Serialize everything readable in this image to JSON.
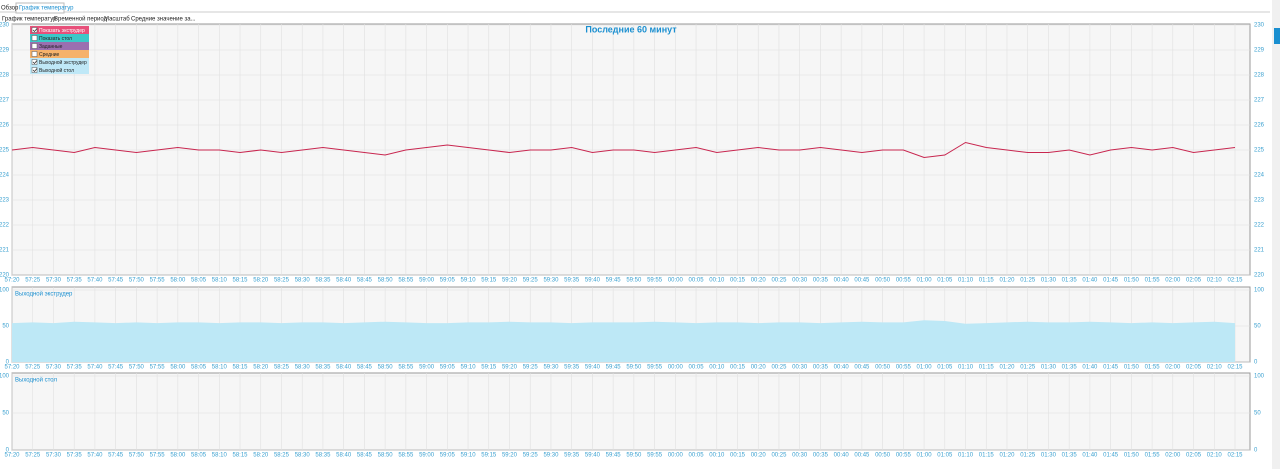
{
  "tabs": [
    "Обзор",
    "График температур"
  ],
  "menu": [
    "График температур",
    "Временной период",
    "Масштаб",
    "Средние значение за..."
  ],
  "legend": [
    {
      "label": "Показать экструдер",
      "color": "#e8507a",
      "checked": true
    },
    {
      "label": "Показать стол",
      "color": "#3cc8c8",
      "checked": false
    },
    {
      "label": "Заданные",
      "color": "#9b6fb0",
      "checked": false
    },
    {
      "label": "Средние",
      "color": "#f5b26b",
      "checked": false
    },
    {
      "label": "Выходной экструдер",
      "color": "#bfe8f7",
      "checked": true
    },
    {
      "label": "Выходной стол",
      "color": "#bfe8f7",
      "checked": true
    }
  ],
  "chart_data": [
    {
      "type": "line",
      "title": "Последние 60 минут",
      "color": "#c8264f",
      "ylim": [
        220,
        230
      ],
      "yticks": [
        220,
        221,
        222,
        223,
        224,
        225,
        226,
        227,
        228,
        229,
        230
      ],
      "grid": true,
      "categories": [
        "57:20",
        "57:25",
        "57:30",
        "57:35",
        "57:40",
        "57:45",
        "57:50",
        "57:55",
        "58:00",
        "58:05",
        "58:10",
        "58:15",
        "58:20",
        "58:25",
        "58:30",
        "58:35",
        "58:40",
        "58:45",
        "58:50",
        "58:55",
        "59:00",
        "59:05",
        "59:10",
        "59:15",
        "59:20",
        "59:25",
        "59:30",
        "59:35",
        "59:40",
        "59:45",
        "59:50",
        "59:55",
        "00:00",
        "00:05",
        "00:10",
        "00:15",
        "00:20",
        "00:25",
        "00:30",
        "00:35",
        "00:40",
        "00:45",
        "00:50",
        "00:55",
        "01:00",
        "01:05",
        "01:10",
        "01:15",
        "01:20",
        "01:25",
        "01:30",
        "01:35",
        "01:40",
        "01:45",
        "01:50",
        "01:55",
        "02:00",
        "02:05",
        "02:10",
        "02:15"
      ],
      "values": [
        225.0,
        225.1,
        225.0,
        224.9,
        225.1,
        225.0,
        224.9,
        225.0,
        225.1,
        225.0,
        225.0,
        224.9,
        225.0,
        224.9,
        225.0,
        225.1,
        225.0,
        224.9,
        224.8,
        225.0,
        225.1,
        225.2,
        225.1,
        225.0,
        224.9,
        225.0,
        225.0,
        225.1,
        224.9,
        225.0,
        225.0,
        224.9,
        225.0,
        225.1,
        224.9,
        225.0,
        225.1,
        225.0,
        225.0,
        225.1,
        225.0,
        224.9,
        225.0,
        225.0,
        224.7,
        224.8,
        225.3,
        225.1,
        225.0,
        224.9,
        224.9,
        225.0,
        224.8,
        225.0,
        225.1,
        225.0,
        225.1,
        224.9,
        225.0,
        225.1
      ]
    },
    {
      "type": "area",
      "title": "Выходной экструдер",
      "color": "#bde8f6",
      "ylim": [
        0,
        100
      ],
      "yticks": [
        0,
        50,
        100
      ],
      "grid": true,
      "categories": [
        "57:20",
        "57:25",
        "57:30",
        "57:35",
        "57:40",
        "57:45",
        "57:50",
        "57:55",
        "58:00",
        "58:05",
        "58:10",
        "58:15",
        "58:20",
        "58:25",
        "58:30",
        "58:35",
        "58:40",
        "58:45",
        "58:50",
        "58:55",
        "59:00",
        "59:05",
        "59:10",
        "59:15",
        "59:20",
        "59:25",
        "59:30",
        "59:35",
        "59:40",
        "59:45",
        "59:50",
        "59:55",
        "00:00",
        "00:05",
        "00:10",
        "00:15",
        "00:20",
        "00:25",
        "00:30",
        "00:35",
        "00:40",
        "00:45",
        "00:50",
        "00:55",
        "01:00",
        "01:05",
        "01:10",
        "01:15",
        "01:20",
        "01:25",
        "01:30",
        "01:35",
        "01:40",
        "01:45",
        "01:50",
        "01:55",
        "02:00",
        "02:05",
        "02:10",
        "02:15"
      ],
      "values": [
        54,
        55,
        54,
        56,
        55,
        54,
        55,
        54,
        55,
        55,
        54,
        55,
        55,
        54,
        55,
        55,
        54,
        55,
        56,
        55,
        54,
        54,
        55,
        55,
        56,
        55,
        55,
        54,
        55,
        55,
        55,
        56,
        55,
        54,
        55,
        55,
        54,
        55,
        55,
        54,
        55,
        56,
        55,
        55,
        58,
        57,
        53,
        54,
        55,
        56,
        55,
        55,
        56,
        55,
        54,
        55,
        54,
        55,
        56,
        54
      ]
    },
    {
      "type": "empty",
      "title": "Выходной стол",
      "ylim": [
        0,
        100
      ],
      "yticks": [
        0,
        50,
        100
      ],
      "grid": true,
      "categories": [
        "57:20",
        "57:25",
        "57:30",
        "57:35",
        "57:40",
        "57:45",
        "57:50",
        "57:55",
        "58:00",
        "58:05",
        "58:10",
        "58:15",
        "58:20",
        "58:25",
        "58:30",
        "58:35",
        "58:40",
        "58:45",
        "58:50",
        "58:55",
        "59:00",
        "59:05",
        "59:10",
        "59:15",
        "59:20",
        "59:25",
        "59:30",
        "59:35",
        "59:40",
        "59:45",
        "59:50",
        "59:55",
        "00:00",
        "00:05",
        "00:10",
        "00:15",
        "00:20",
        "00:25",
        "00:30",
        "00:35",
        "00:40",
        "00:45",
        "00:50",
        "00:55",
        "01:00",
        "01:05",
        "01:10",
        "01:15",
        "01:20",
        "01:25",
        "01:30",
        "01:35",
        "01:40",
        "01:45",
        "01:50",
        "01:55",
        "02:00",
        "02:05",
        "02:10",
        "02:15"
      ]
    }
  ]
}
